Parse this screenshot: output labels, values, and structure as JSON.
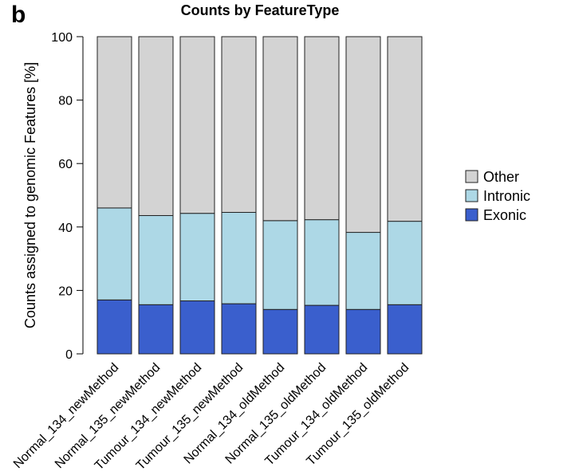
{
  "panel_label": "b",
  "chart_data": {
    "type": "bar",
    "stacked": true,
    "title": "Counts by FeatureType",
    "xlabel": "",
    "ylabel": "Counts assigned to genomic Features [%]",
    "ylim": [
      0,
      100
    ],
    "yticks": [
      "0",
      "20",
      "40",
      "60",
      "80",
      "100"
    ],
    "grid": false,
    "legend_position": "right",
    "categories": [
      "Normal_134_newMethod",
      "Normal_135_newMethod",
      "Tumour_134_newMethod",
      "Tumour_135_newMethod",
      "Normal_134_oldMethod",
      "Normal_135_oldMethod",
      "Tumour_134_oldMethod",
      "Tumour_135_oldMethod"
    ],
    "series": [
      {
        "name": "Exonic",
        "color": "#3a5fcd",
        "values": [
          17.0,
          15.5,
          16.7,
          15.8,
          14.0,
          15.3,
          14.0,
          15.5
        ]
      },
      {
        "name": "Intronic",
        "color": "#add8e6",
        "values": [
          29.0,
          28.1,
          27.6,
          28.8,
          28.0,
          27.0,
          24.3,
          26.3
        ]
      },
      {
        "name": "Other",
        "color": "#d3d3d3",
        "values": [
          54.0,
          56.4,
          55.7,
          55.4,
          58.0,
          57.7,
          61.7,
          58.2
        ]
      }
    ],
    "legend_order": [
      "Other",
      "Intronic",
      "Exonic"
    ]
  }
}
